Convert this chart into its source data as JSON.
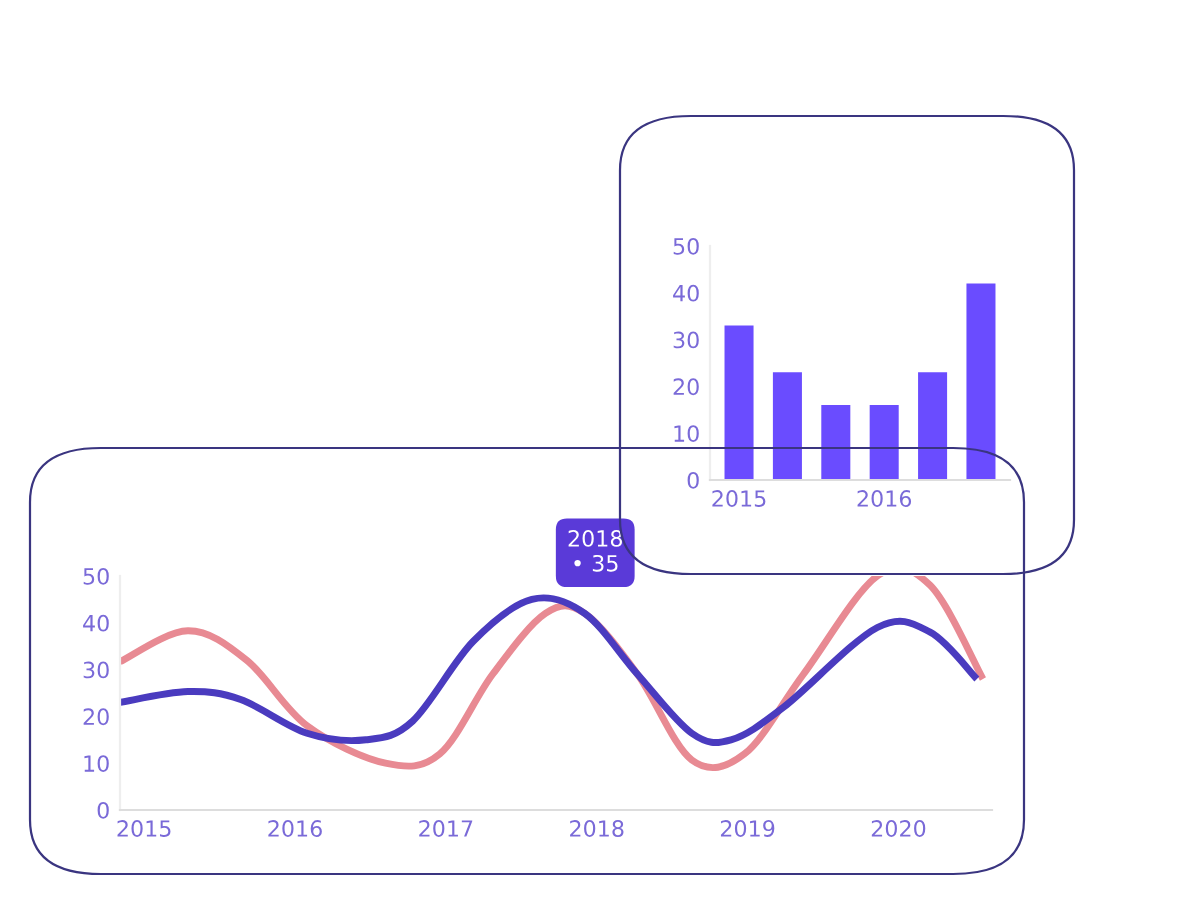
{
  "chart_data": [
    {
      "type": "bar",
      "categories": [
        "2015",
        null,
        null,
        "2016",
        null,
        null
      ],
      "series": [
        {
          "color": "#6a4cff",
          "values": [
            33,
            23,
            16,
            16,
            23,
            42
          ]
        }
      ],
      "ylim": [
        0,
        50
      ],
      "yticks": [
        0,
        10,
        20,
        30,
        40,
        50
      ],
      "grid": false,
      "legend": false
    },
    {
      "type": "line",
      "xlim": [
        2014.84,
        2020.62
      ],
      "xticks": [
        2015,
        2016,
        2017,
        2018,
        2019,
        2020
      ],
      "ylim": [
        0,
        50
      ],
      "yticks": [
        0,
        10,
        20,
        30,
        40,
        50
      ],
      "grid": false,
      "legend": false,
      "marker": "none",
      "line_style": "solid",
      "series": [
        {
          "color": "#e88a93",
          "x": [
            2014.84,
            2015.29,
            2015.68,
            2016.08,
            2016.6,
            2016.96,
            2017.31,
            2017.66,
            2017.92,
            2018.27,
            2018.63,
            2018.98,
            2019.37,
            2019.86,
            2020.21,
            2020.56
          ],
          "values": [
            31.7,
            38.3,
            32,
            18,
            10,
            12,
            29,
            42,
            42,
            29,
            10.7,
            12,
            29,
            50,
            48,
            28
          ]
        },
        {
          "color": "#4a3bbf",
          "x": [
            2014.84,
            2015.29,
            2015.64,
            2016.08,
            2016.47,
            2016.78,
            2017.18,
            2017.57,
            2017.92,
            2018.27,
            2018.63,
            2018.89,
            2019.24,
            2019.86,
            2020.21,
            2020.52
          ],
          "values": [
            23,
            25.3,
            23.6,
            16.4,
            15,
            19,
            36,
            45,
            42,
            29,
            16.4,
            15,
            22,
            39,
            38,
            28
          ]
        }
      ],
      "annotations": [
        "2018\n• 35"
      ]
    }
  ]
}
